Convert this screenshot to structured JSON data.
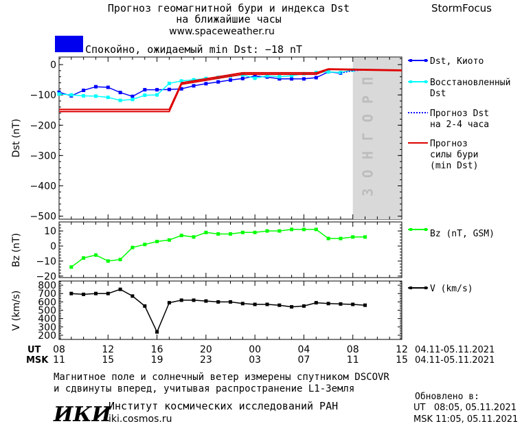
{
  "header": {
    "title_line1": "Прогноз геомагнитной бури и индекса Dst",
    "title_line2": "на ближайшие часы",
    "url": "www.spaceweather.ru",
    "brand": "StormFocus"
  },
  "status": {
    "text": "Спокойно, ожидаемый min Dst: −18 nT",
    "color": "#0000ee"
  },
  "forecast_label": "ПРОГНОЗ",
  "legend": {
    "dst_kyoto": "Dst, Киото",
    "dst_restored_1": "Восстановленный",
    "dst_restored_2": "Dst",
    "dst_forecast_1": "Прогноз Dst",
    "dst_forecast_2": "на 2-4 часа",
    "storm_forecast_1": "Прогноз",
    "storm_forecast_2": "силы бури",
    "storm_forecast_3": "(min Dst)",
    "bz": "Bz (nT, GSM)",
    "v": "V (km/s)"
  },
  "time_axis": {
    "ut_label": "UT",
    "msk_label": "MSK",
    "ut_ticks": [
      "08",
      "12",
      "16",
      "20",
      "00",
      "04",
      "08",
      "12"
    ],
    "msk_ticks": [
      "11",
      "15",
      "19",
      "23",
      "03",
      "07",
      "11",
      "15"
    ],
    "ut_range": "04.11-05.11.2021",
    "msk_range": "04.11-05.11.2021"
  },
  "footer": {
    "note_line1": "Магнитное поле и солнечный ветер измерены спутником DSCOVR",
    "note_line2": "и сдвинуты вперед, учитывая распространение L1-Земля",
    "updated_label": "Обновлено в:",
    "updated_ut": "UT   08:05, 05.11.2021",
    "updated_msk": "MSK 11:05, 05.11.2021",
    "logo_text": "ИКИ",
    "institute": "Институт космических исследований РАН",
    "institute_url": "iki.cosmos.ru"
  },
  "chart_data": [
    {
      "type": "line",
      "ylabel": "Dst (nT)",
      "x_unit": "hours since 08 UT 04.11.2021",
      "xlim": [
        0,
        28
      ],
      "ylim": [
        -510,
        25
      ],
      "yticks": [
        0,
        -100,
        -200,
        -300,
        -400,
        -500
      ],
      "forecast_region": [
        24,
        28
      ],
      "series": [
        {
          "name": "Dst, Киото",
          "color": "#0000ff",
          "x": [
            0,
            1,
            2,
            3,
            4,
            5,
            6,
            7,
            8,
            9,
            10,
            11,
            12,
            13,
            14,
            15,
            16,
            17,
            18,
            19,
            20,
            21,
            22,
            23
          ],
          "y": [
            -91,
            -103,
            -85,
            -73,
            -75,
            -92,
            -105,
            -83,
            -83,
            -82,
            -80,
            -70,
            -63,
            -57,
            -51,
            -46,
            -38,
            -41,
            -47,
            -47,
            -47,
            -43,
            -24,
            -28
          ]
        },
        {
          "name": "Восстановленный Dst",
          "color": "#00ffff",
          "x": [
            0,
            1,
            2,
            3,
            4,
            5,
            6,
            7,
            8,
            9,
            10,
            11,
            12,
            13,
            14,
            15,
            16,
            17,
            18,
            19,
            20,
            21,
            22,
            23,
            24
          ],
          "y": [
            -97,
            -100,
            -103,
            -104,
            -108,
            -118,
            -115,
            -101,
            -100,
            -62,
            -54,
            -50,
            -46,
            -42,
            -38,
            -34,
            -45,
            -37,
            -40,
            -37,
            -30,
            -26,
            -24,
            -26,
            -18
          ]
        },
        {
          "name": "Прогноз Dst на 2-4 часа",
          "color": "#0000ff",
          "x": [
            23,
            24,
            25
          ],
          "y": [
            -28,
            -20,
            -18
          ]
        },
        {
          "name": "Прогноз силы бури (min Dst)",
          "color": "#dd0000",
          "x": [
            0,
            9,
            10,
            15,
            21,
            22,
            28
          ],
          "y": [
            -148,
            -148,
            -60,
            -27,
            -27,
            -14,
            -18
          ]
        },
        {
          "name": "Прогноз силы бури (min Dst)",
          "color": "#dd0000",
          "x": [
            0,
            9,
            10,
            15,
            21,
            22,
            28
          ],
          "y": [
            -155,
            -155,
            -65,
            -32,
            -32,
            -16,
            -20
          ]
        }
      ]
    },
    {
      "type": "line",
      "ylabel": "Bz (nT)",
      "xlim": [
        0,
        28
      ],
      "ylim": [
        -21,
        16
      ],
      "yticks": [
        10,
        0,
        -10,
        -20
      ],
      "series": [
        {
          "name": "Bz (nT, GSM)",
          "color": "#00ff00",
          "x": [
            1,
            2,
            3,
            4,
            5,
            6,
            7,
            8,
            9,
            10,
            11,
            12,
            13,
            14,
            15,
            16,
            17,
            18,
            19,
            20,
            21,
            22,
            23,
            24,
            25
          ],
          "y": [
            -14,
            -8,
            -6,
            -10,
            -9,
            -1,
            1,
            3,
            4,
            7,
            6,
            9,
            8,
            8,
            9,
            9,
            10,
            10,
            11,
            11,
            11,
            5,
            5,
            6,
            6
          ]
        }
      ]
    },
    {
      "type": "line",
      "ylabel": "V (km/s)",
      "xlim": [
        0,
        28
      ],
      "ylim": [
        150,
        850
      ],
      "yticks": [
        800,
        700,
        600,
        500,
        400,
        300,
        200
      ],
      "series": [
        {
          "name": "V (km/s)",
          "color": "#000000",
          "x": [
            1,
            2,
            3,
            4,
            5,
            6,
            7,
            8,
            9,
            10,
            11,
            12,
            13,
            14,
            15,
            16,
            17,
            18,
            19,
            20,
            21,
            22,
            23,
            24,
            25
          ],
          "y": [
            700,
            690,
            700,
            700,
            750,
            670,
            550,
            240,
            590,
            620,
            620,
            610,
            600,
            600,
            580,
            570,
            570,
            560,
            540,
            550,
            590,
            580,
            575,
            570,
            560
          ]
        }
      ]
    }
  ]
}
